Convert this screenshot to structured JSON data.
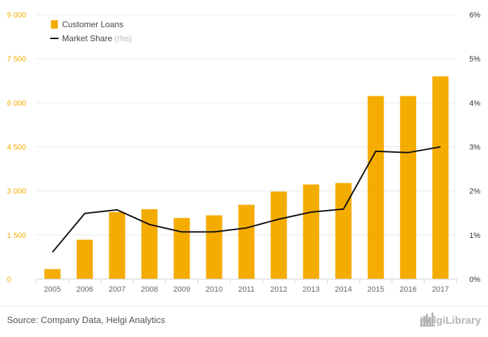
{
  "colors": {
    "bar": "#f5ac00",
    "line": "#111111",
    "left_axis_text": "#f5ac00",
    "right_axis_text": "#333333",
    "grid": "#e7e7e7",
    "category_text": "#666666",
    "legend_text": "#444444",
    "rhs_text": "#bbbbbb"
  },
  "chart_data": {
    "type": "bar",
    "title": "",
    "xlabel": "",
    "ylabel": "",
    "categories": [
      "2005",
      "2006",
      "2007",
      "2008",
      "2009",
      "2010",
      "2011",
      "2012",
      "2013",
      "2014",
      "2015",
      "2016",
      "2017"
    ],
    "series": [
      {
        "name": "Customer Loans",
        "type": "bar",
        "axis": "left",
        "values": [
          340,
          1340,
          2280,
          2380,
          2080,
          2170,
          2530,
          2980,
          3220,
          3270,
          6230,
          6230,
          6900
        ]
      },
      {
        "name": "Market Share",
        "type": "line",
        "axis": "right",
        "values": [
          0.61,
          1.49,
          1.57,
          1.24,
          1.07,
          1.07,
          1.16,
          1.36,
          1.52,
          1.59,
          2.9,
          2.87,
          3.0
        ]
      }
    ],
    "left_axis": {
      "ylim": [
        0,
        9000
      ],
      "ticks": [
        0,
        1500,
        3000,
        4500,
        6000,
        7500,
        9000
      ],
      "tick_labels": [
        "0",
        "1 500",
        "3 000",
        "4 500",
        "6 000",
        "7 500",
        "9 000"
      ]
    },
    "right_axis": {
      "ylim": [
        0,
        6
      ],
      "ticks": [
        0,
        1,
        2,
        3,
        4,
        5,
        6
      ],
      "tick_labels": [
        "0%",
        "1%",
        "2%",
        "3%",
        "4%",
        "5%",
        "6%"
      ]
    },
    "legend": {
      "placement": "top-left",
      "items": [
        {
          "label": "Customer Loans",
          "suffix": ""
        },
        {
          "label": "Market Share",
          "suffix": "(rhs)"
        }
      ]
    },
    "grid": true
  },
  "footer": {
    "source": "Source: Company Data, Helgi Analytics",
    "brand": "HelgiLibrary"
  }
}
